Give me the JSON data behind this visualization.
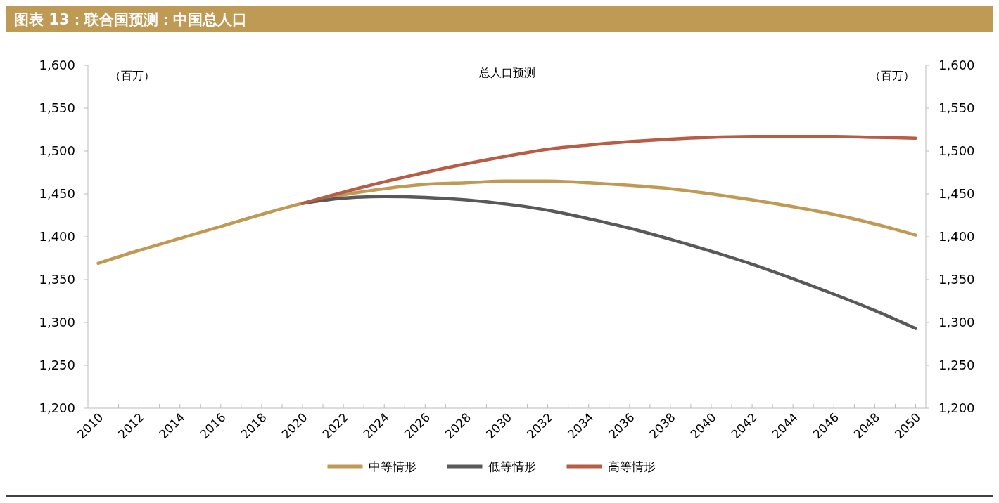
{
  "chart_data": {
    "type": "line",
    "title": "图表 13：联合国预测：中国总人口",
    "subtitle": "总人口预测",
    "ylabel": "（百万）",
    "y2label": "（百万）",
    "xlim": [
      2009.5,
      2050.5
    ],
    "xticks": [
      2010,
      {
        "value": 2011,
        "label": null
      },
      2012,
      {
        "value": 2013,
        "label": null
      },
      2014,
      {
        "value": 2015,
        "label": null
      },
      2016,
      {
        "value": 2017,
        "label": null
      },
      2018,
      {
        "value": 2019,
        "label": null
      },
      2020,
      {
        "value": 2021,
        "label": null
      },
      2022,
      {
        "value": 2023,
        "label": null
      },
      2024,
      {
        "value": 2025,
        "label": null
      },
      2026,
      {
        "value": 2027,
        "label": null
      },
      2028,
      {
        "value": 2029,
        "label": null
      },
      2030,
      {
        "value": 2031,
        "label": null
      },
      2032,
      {
        "value": 2033,
        "label": null
      },
      2034,
      {
        "value": 2035,
        "label": null
      },
      2036,
      {
        "value": 2037,
        "label": null
      },
      2038,
      {
        "value": 2039,
        "label": null
      },
      2040,
      {
        "value": 2041,
        "label": null
      },
      2042,
      {
        "value": 2043,
        "label": null
      },
      2044,
      {
        "value": 2045,
        "label": null
      },
      2046,
      {
        "value": 2047,
        "label": null
      },
      2048,
      {
        "value": 2049,
        "label": null
      },
      2050
    ],
    "ylim": [
      1200,
      1600
    ],
    "yticks": [
      {
        "value": 1200,
        "label": "1,200"
      },
      {
        "value": 1250,
        "label": "1,250"
      },
      {
        "value": 1300,
        "label": "1,300"
      },
      {
        "value": 1350,
        "label": "1,350"
      },
      {
        "value": 1400,
        "label": "1,400"
      },
      {
        "value": 1450,
        "label": "1,450"
      },
      {
        "value": 1500,
        "label": "1,500"
      },
      {
        "value": 1550,
        "label": "1,550"
      },
      {
        "value": 1600,
        "label": "1,600"
      }
    ],
    "y2lim": [
      1200,
      1600
    ],
    "y2ticks": [
      {
        "value": 1200,
        "label": "1,200"
      },
      {
        "value": 1250,
        "label": "1,250"
      },
      {
        "value": 1300,
        "label": "1,300"
      },
      {
        "value": 1350,
        "label": "1,350"
      },
      {
        "value": 1400,
        "label": "1,400"
      },
      {
        "value": 1450,
        "label": "1,450"
      },
      {
        "value": 1500,
        "label": "1,500"
      },
      {
        "value": 1550,
        "label": "1,550"
      },
      {
        "value": 1600,
        "label": "1,600"
      }
    ],
    "grid": false,
    "legend": "bottom",
    "marker": "none",
    "line_style": "solid",
    "series": [
      {
        "name": "中等情形",
        "color": "#c09a55",
        "x": [
          2010,
          2012,
          2014,
          2016,
          2018,
          2020,
          2022,
          2024,
          2026,
          2028,
          2030,
          2032,
          2034,
          2036,
          2038,
          2040,
          2042,
          2044,
          2046,
          2048,
          2050
        ],
        "values": [
          1369,
          1384,
          1398,
          1412,
          1426,
          1439,
          1449,
          1456,
          1461,
          1463,
          1465,
          1465,
          1463,
          1460,
          1456,
          1450,
          1443,
          1435,
          1426,
          1415,
          1402
        ]
      },
      {
        "name": "低等情形",
        "color": "#595959",
        "x": [
          2020,
          2022,
          2024,
          2026,
          2028,
          2030,
          2032,
          2034,
          2036,
          2038,
          2040,
          2042,
          2044,
          2046,
          2048,
          2050
        ],
        "values": [
          1439,
          1445,
          1447,
          1446,
          1443,
          1438,
          1431,
          1421,
          1410,
          1397,
          1383,
          1368,
          1351,
          1333,
          1314,
          1293
        ]
      },
      {
        "name": "高等情形",
        "color": "#b85c45",
        "x": [
          2020,
          2022,
          2024,
          2026,
          2028,
          2030,
          2032,
          2034,
          2036,
          2038,
          2040,
          2042,
          2044,
          2046,
          2048,
          2050
        ],
        "values": [
          1439,
          1452,
          1464,
          1475,
          1485,
          1494,
          1502,
          1507,
          1511,
          1514,
          1516,
          1517,
          1517,
          1517,
          1516,
          1515
        ]
      }
    ]
  }
}
